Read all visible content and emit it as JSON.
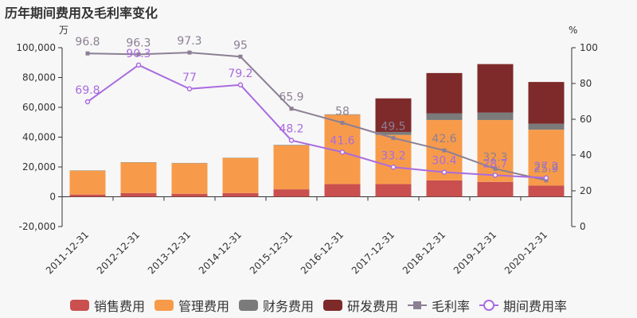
{
  "title": "历年期间费用及毛利率变化",
  "chart_data": {
    "type": "bar",
    "stacked": true,
    "categories": [
      "2011-12-31",
      "2012-12-31",
      "2013-12-31",
      "2014-12-31",
      "2015-12-31",
      "2016-12-31",
      "2017-12-31",
      "2018-12-31",
      "2019-12-31",
      "2020-12-31"
    ],
    "left_axis": {
      "unit": "万",
      "min": -20000,
      "max": 100000,
      "ticks": [
        -20000,
        0,
        20000,
        40000,
        60000,
        80000,
        100000
      ],
      "tick_labels": [
        "-20,000",
        "0",
        "20,000",
        "40,000",
        "60,000",
        "80,000",
        "100,000"
      ]
    },
    "right_axis": {
      "unit": "%",
      "min": 0,
      "max": 100,
      "ticks": [
        0,
        20,
        40,
        60,
        80,
        100
      ],
      "tick_labels": [
        "0",
        "20",
        "40",
        "60",
        "80",
        "100"
      ]
    },
    "series": [
      {
        "name": "销售费用",
        "kind": "bar",
        "axis": "left",
        "color": "#c9504f",
        "values": [
          1500,
          2500,
          2000,
          2500,
          5000,
          8500,
          8500,
          11000,
          10000,
          7500
        ]
      },
      {
        "name": "管理费用",
        "kind": "bar",
        "axis": "left",
        "color": "#f79b4a",
        "values": [
          16000,
          20500,
          20500,
          23500,
          29500,
          46500,
          33000,
          40500,
          41500,
          37500
        ]
      },
      {
        "name": "财务费用",
        "kind": "bar",
        "axis": "left",
        "color": "#7b7b7b",
        "values": [
          200,
          200,
          200,
          200,
          300,
          300,
          2000,
          4500,
          5000,
          4000
        ]
      },
      {
        "name": "研发费用",
        "kind": "bar",
        "axis": "left",
        "color": "#7e2a2a",
        "values": [
          0,
          0,
          0,
          0,
          0,
          0,
          22500,
          27000,
          32500,
          28000
        ]
      },
      {
        "name": "毛利率",
        "kind": "line",
        "axis": "right",
        "color": "#8c7f95",
        "marker": "square",
        "values": [
          96.8,
          96.3,
          97.3,
          95,
          65.9,
          58,
          49.5,
          42.6,
          32.3,
          25.9
        ],
        "labels": [
          "96.8",
          "96.3",
          "97.3",
          "95",
          "65.9",
          "58",
          "49.5",
          "42.6",
          "32.3",
          "25.9"
        ]
      },
      {
        "name": "期间费用率",
        "kind": "line",
        "axis": "right",
        "color": "#a96be0",
        "marker": "circle",
        "values": [
          69.8,
          90.3,
          77,
          79.2,
          48.2,
          41.6,
          33.2,
          30.4,
          28.7,
          27.2
        ],
        "labels": [
          "69.8",
          "90.3",
          "77",
          "79.2",
          "48.2",
          "41.6",
          "33.2",
          "30.4",
          "28.7",
          "27.2"
        ]
      }
    ],
    "legend_position": "bottom",
    "grid": false
  }
}
